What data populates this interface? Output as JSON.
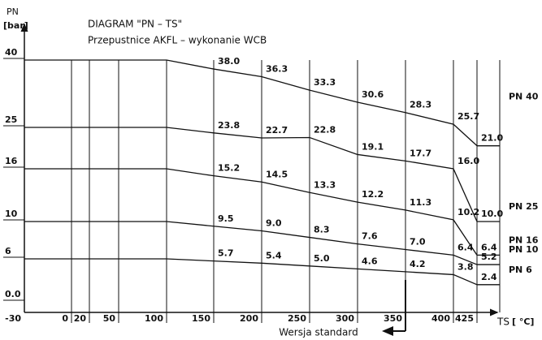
{
  "chart_data": {
    "type": "line",
    "title": "DIAGRAM \"PN – TS\"",
    "subtitle": "Przepustnice AKFL – wykonanie WCB",
    "y_label": "PN",
    "y_unit": "[bar]",
    "x_label": "TS",
    "x_unit": "[ °C]",
    "annotation": "Wersja standard",
    "x": [
      -30,
      100,
      150,
      200,
      250,
      300,
      350,
      400,
      425
    ],
    "xticks": [
      -30,
      0,
      20,
      50,
      100,
      150,
      200,
      250,
      300,
      350,
      400,
      425
    ],
    "yticks": [
      {
        "value": 0,
        "label": "0.0"
      },
      6,
      10,
      16,
      25,
      40
    ],
    "series": [
      {
        "name": "PN 40",
        "color": "#111111",
        "values": [
          40,
          40,
          38.0,
          36.3,
          33.3,
          30.6,
          28.3,
          25.7,
          21.0
        ],
        "value_labels": [
          null,
          null,
          "38.0",
          "36.3",
          "33.3",
          "30.6",
          "28.3",
          "25.7",
          "21.0"
        ]
      },
      {
        "name": "PN 25",
        "color": "#111111",
        "values": [
          25,
          25,
          23.8,
          22.7,
          22.8,
          19.1,
          17.7,
          16.0,
          10.0
        ],
        "value_labels": [
          null,
          null,
          "23.8",
          "22.7",
          "22.8",
          "19.1",
          "17.7",
          "16.0",
          "10.0"
        ]
      },
      {
        "name": "PN 16",
        "color": "#111111",
        "values": [
          16,
          16,
          15.2,
          14.5,
          13.3,
          12.2,
          11.3,
          10.2,
          6.4
        ],
        "value_labels": [
          null,
          null,
          "15.2",
          "14.5",
          "13.3",
          "12.2",
          "11.3",
          "10.2",
          "6.4"
        ]
      },
      {
        "name": "PN 10",
        "color": "#111111",
        "values": [
          10,
          10,
          9.5,
          9.0,
          8.3,
          7.6,
          7.0,
          6.4,
          5.2
        ],
        "value_labels": [
          null,
          null,
          "9.5",
          "9.0",
          "8.3",
          "7.6",
          "7.0",
          "6.4",
          "5.2"
        ]
      },
      {
        "name": "PN 6",
        "color": "#111111",
        "values": [
          6,
          6,
          5.7,
          5.4,
          5.0,
          4.6,
          4.2,
          3.8,
          2.4
        ],
        "value_labels": [
          null,
          null,
          "5.7",
          "5.4",
          "5.0",
          "4.6",
          "4.2",
          "3.8",
          "2.4"
        ]
      }
    ]
  }
}
